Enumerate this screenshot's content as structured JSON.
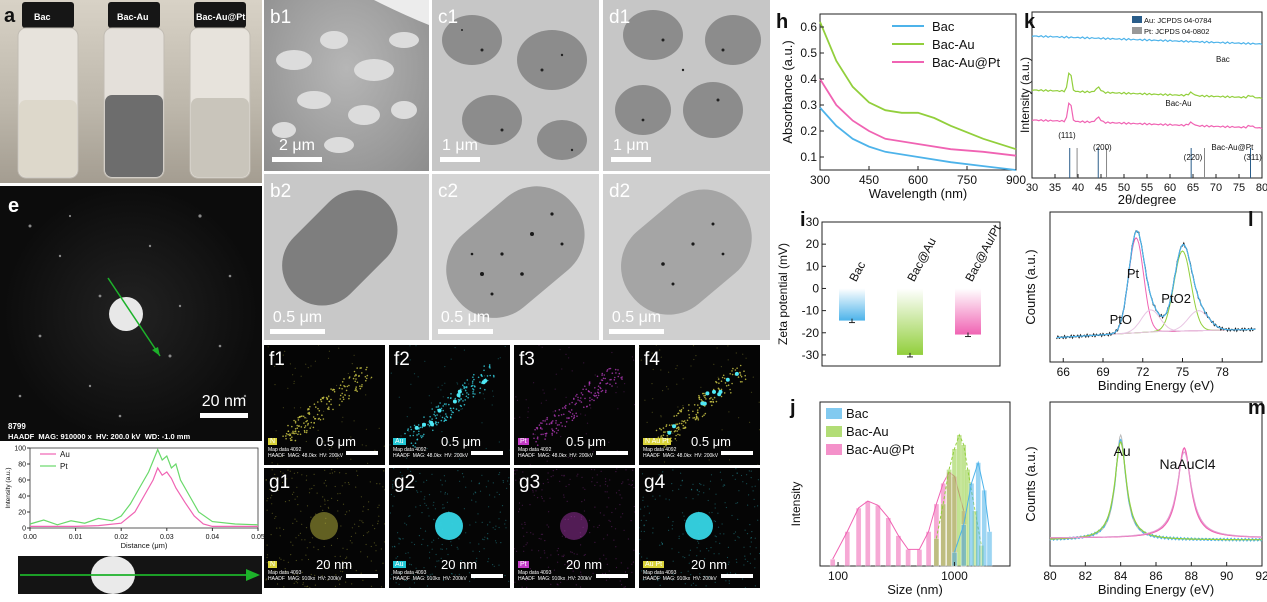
{
  "panels": {
    "a": {
      "letter": "a",
      "vials": [
        "Bac",
        "Bac-Au",
        "Bac-Au@Pt"
      ]
    },
    "e": {
      "letter": "e",
      "scale": "20 nm",
      "id_text": "8799",
      "info": "HAADF  MAG: 910000 x  HV: 200.0 kV  WD: -1.0 mm"
    },
    "b1": {
      "letter": "b1",
      "scale": "2 μm"
    },
    "c1": {
      "letter": "c1",
      "scale": "1 μm"
    },
    "d1": {
      "letter": "d1",
      "scale": "1 μm"
    },
    "b2": {
      "letter": "b2",
      "scale": "0.5 μm"
    },
    "c2": {
      "letter": "c2",
      "scale": "0.5 μm"
    },
    "d2": {
      "letter": "d2",
      "scale": "0.5 μm"
    },
    "f1": {
      "letter": "f1",
      "scale": "0.5 μm",
      "tag": "N",
      "meta": "Map data 4092\nHAADF  MAG: 48.0kx  HV: 200kV"
    },
    "f2": {
      "letter": "f2",
      "scale": "0.5 μm",
      "tag": "Au",
      "meta": "Map data 4092\nHAADF  MAG: 48.0kx  HV: 200kV"
    },
    "f3": {
      "letter": "f3",
      "scale": "0.5 μm",
      "tag": "Pt",
      "meta": "Map data 4092\nHAADF  MAG: 48.0kx  HV: 200kV"
    },
    "f4": {
      "letter": "f4",
      "scale": "0.5 μm",
      "tag": "N Au Pt",
      "meta": "Map data 4092\nHAADF  MAG: 48.0kx  HV: 200kV"
    },
    "g1": {
      "letter": "g1",
      "scale": "20 nm",
      "tag": "N",
      "meta": "Map data 4093\nHAADF  MAG: 910kx  HV: 200kV"
    },
    "g2": {
      "letter": "g2",
      "scale": "20 nm",
      "tag": "Au",
      "meta": "Map data 4093\nHAADF  MAG: 910kx  HV: 200kV"
    },
    "g3": {
      "letter": "g3",
      "scale": "20 nm",
      "tag": "Pt",
      "meta": "Map data 4093\nHAADF  MAG: 910kx  HV: 200kV"
    },
    "g4": {
      "letter": "g4",
      "scale": "20 nm",
      "tag": "Au Pt",
      "meta": "Map data 4093\nHAADF  MAG: 910kx  HV: 200kV"
    },
    "h": {
      "letter": "h"
    },
    "i": {
      "letter": "i"
    },
    "j": {
      "letter": "j"
    },
    "k": {
      "letter": "k"
    },
    "l": {
      "letter": "l"
    },
    "m": {
      "letter": "m"
    }
  },
  "colors": {
    "bac": "#4db3ea",
    "bacau": "#92cf3c",
    "bacaupt": "#f063b3",
    "line_scan": "#1db22a"
  },
  "chart_data": [
    {
      "id": "line-scan",
      "type": "line",
      "xlabel": "Distance (μm)",
      "ylabel": "Intensity (a.u.)",
      "xlim": [
        0,
        0.05
      ],
      "ylim": [
        0,
        100
      ],
      "xticks": [
        "0.00",
        "0.01",
        "0.02",
        "0.03",
        "0.04",
        "0.05"
      ],
      "yticks": [
        "0",
        "20",
        "40",
        "60",
        "80",
        "100"
      ],
      "legend": [
        "Au",
        "Pt"
      ],
      "series": [
        {
          "name": "Au",
          "color": "#f063b3",
          "x": [
            0,
            0.005,
            0.01,
            0.015,
            0.02,
            0.023,
            0.025,
            0.027,
            0.028,
            0.029,
            0.03,
            0.031,
            0.032,
            0.034,
            0.036,
            0.038,
            0.04,
            0.045,
            0.05
          ],
          "y": [
            2,
            2,
            2,
            3,
            6,
            20,
            40,
            60,
            75,
            66,
            70,
            62,
            50,
            32,
            15,
            5,
            2,
            2,
            2
          ]
        },
        {
          "name": "Pt",
          "color": "#69d96a",
          "x": [
            0,
            0.003,
            0.006,
            0.009,
            0.012,
            0.015,
            0.018,
            0.02,
            0.022,
            0.024,
            0.026,
            0.028,
            0.029,
            0.03,
            0.031,
            0.032,
            0.033,
            0.035,
            0.037,
            0.04,
            0.045,
            0.05
          ],
          "y": [
            5,
            10,
            4,
            9,
            6,
            12,
            9,
            15,
            30,
            50,
            70,
            98,
            85,
            90,
            75,
            80,
            60,
            40,
            20,
            8,
            5,
            4
          ]
        }
      ]
    },
    {
      "id": "h",
      "type": "line",
      "xlabel": "Wavelength (nm)",
      "ylabel": "Absorbance (a.u.)",
      "xlim": [
        300,
        900
      ],
      "ylim": [
        0.05,
        0.65
      ],
      "xticks": [
        "300",
        "450",
        "600",
        "750",
        "900"
      ],
      "yticks": [
        "0.1",
        "0.2",
        "0.3",
        "0.4",
        "0.5",
        "0.6"
      ],
      "legend": [
        "Bac",
        "Bac-Au",
        "Bac-Au@Pt"
      ],
      "series": [
        {
          "name": "Bac",
          "color": "#4db3ea",
          "x": [
            300,
            350,
            400,
            450,
            500,
            600,
            700,
            800,
            900
          ],
          "y": [
            0.29,
            0.22,
            0.17,
            0.14,
            0.12,
            0.1,
            0.08,
            0.065,
            0.05
          ]
        },
        {
          "name": "Bac-Au",
          "color": "#92cf3c",
          "x": [
            300,
            350,
            400,
            450,
            500,
            550,
            600,
            650,
            700,
            800,
            900
          ],
          "y": [
            0.62,
            0.47,
            0.37,
            0.31,
            0.28,
            0.27,
            0.27,
            0.25,
            0.22,
            0.17,
            0.13
          ]
        },
        {
          "name": "Bac-Au@Pt",
          "color": "#f063b3",
          "x": [
            300,
            350,
            400,
            450,
            500,
            600,
            700,
            800,
            900
          ],
          "y": [
            0.4,
            0.3,
            0.24,
            0.2,
            0.17,
            0.15,
            0.13,
            0.12,
            0.105
          ]
        }
      ]
    },
    {
      "id": "i",
      "type": "bar",
      "ylabel": "Zeta potential (mV)",
      "ylim": [
        -35,
        30
      ],
      "yticks": [
        "-30",
        "-20",
        "-10",
        "0",
        "10",
        "20",
        "30"
      ],
      "categories": [
        "Bac",
        "Bac@Au",
        "Bac@Au/Pt"
      ],
      "values": [
        -14.5,
        -30.0,
        -20.8
      ],
      "errors": [
        0.5,
        0.6,
        0.5
      ],
      "colors": [
        "#4db3ea",
        "#92cf3c",
        "#f063b3"
      ]
    },
    {
      "id": "j",
      "type": "bar",
      "xlabel": "Size (nm)",
      "ylabel": "Intensity",
      "xscale": "log",
      "xlim": [
        70,
        3000
      ],
      "xticks": [
        "100",
        "1000"
      ],
      "legend": [
        "Bac",
        "Bac-Au",
        "Bac-Au@Pt"
      ],
      "series": [
        {
          "name": "Bac",
          "color": "#4db3ea",
          "x": [
            1000,
            1200,
            1400,
            1600,
            1800,
            2000
          ],
          "y": [
            10,
            30,
            60,
            75,
            55,
            25
          ]
        },
        {
          "name": "Bac-Au",
          "color": "#92cf3c",
          "x": [
            700,
            800,
            900,
            1000,
            1100,
            1200,
            1300,
            1500,
            1700
          ],
          "y": [
            20,
            45,
            70,
            85,
            95,
            88,
            70,
            40,
            15
          ]
        },
        {
          "name": "Bac-Au@Pt",
          "color": "#f063b3",
          "x": [
            90,
            120,
            150,
            180,
            220,
            270,
            330,
            400,
            500,
            600,
            700,
            800,
            900,
            1000,
            1200
          ],
          "y": [
            5,
            25,
            42,
            47,
            44,
            35,
            22,
            12,
            12,
            25,
            45,
            60,
            68,
            65,
            40
          ]
        }
      ]
    },
    {
      "id": "k",
      "type": "line",
      "xlabel": "2θ/degree",
      "ylabel": "Intensity (a.u.)",
      "xlim": [
        30,
        80
      ],
      "xticks": [
        "30",
        "35",
        "40",
        "45",
        "50",
        "55",
        "60",
        "65",
        "70",
        "75",
        "80"
      ],
      "legend": [
        "Au: JCPDS 04-0784",
        "Pt:  JCPDS 04-0802"
      ],
      "series": [
        {
          "name": "Bac",
          "color": "#4db3ea"
        },
        {
          "name": "Bac-Au",
          "color": "#92cf3c"
        },
        {
          "name": "Bac-Au@Pt",
          "color": "#f063b3"
        }
      ],
      "annotations": [
        "(111)",
        "(200)",
        "(220)",
        "(311)",
        "Bac",
        "Bac-Au",
        "Bac-Au@Pt"
      ]
    },
    {
      "id": "l",
      "type": "line",
      "xlabel": "Binding Energy (eV)",
      "ylabel": "Counts (a.u.)",
      "xlim": [
        65,
        81
      ],
      "xticks": [
        "66",
        "69",
        "72",
        "75",
        "78"
      ],
      "annotations": [
        "Pt",
        "PtO",
        "PtO2"
      ]
    },
    {
      "id": "m",
      "type": "line",
      "xlabel": "Binding Energy (eV)",
      "ylabel": "Counts (a.u.)",
      "xlim": [
        80,
        92
      ],
      "xticks": [
        "80",
        "82",
        "84",
        "86",
        "88",
        "90",
        "92"
      ],
      "annotations": [
        "Au",
        "NaAuCl4"
      ]
    }
  ]
}
